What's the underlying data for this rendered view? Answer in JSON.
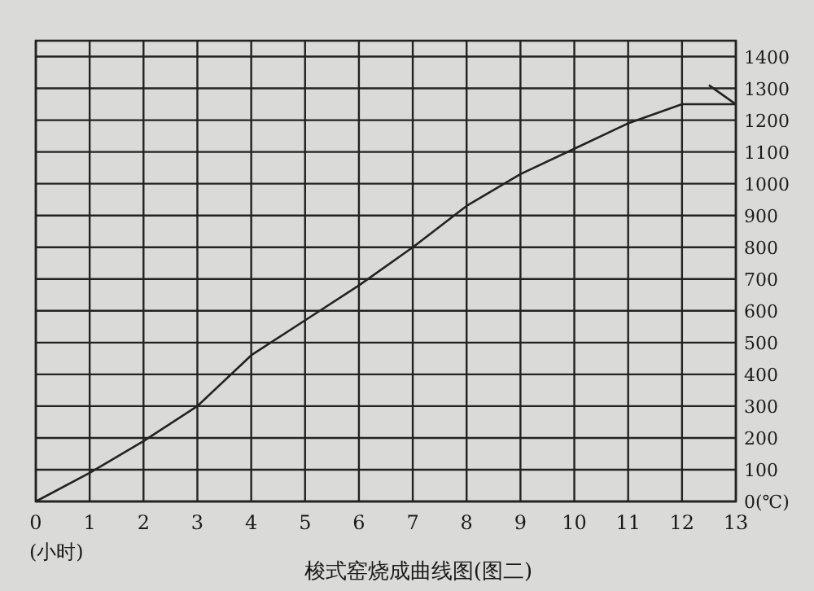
{
  "chart_data": {
    "type": "line",
    "title": "梭式窑烧成曲线图(图二)",
    "xlabel": "(小时)",
    "series": [
      {
        "color": "#222222",
        "x": [
          0,
          1,
          2,
          3,
          4,
          5,
          6,
          7,
          8,
          9,
          10,
          11,
          12,
          13
        ],
        "values": [
          0,
          90,
          190,
          300,
          460,
          570,
          680,
          800,
          930,
          1030,
          1110,
          1190,
          1250,
          1250
        ]
      },
      {
        "color": "#222222",
        "x": [
          12.5,
          13
        ],
        "values": [
          1310,
          1250
        ]
      }
    ],
    "xlim": [
      0,
      13
    ],
    "xticks": [
      0,
      1,
      2,
      3,
      4,
      5,
      6,
      7,
      8,
      9,
      10,
      11,
      12,
      13
    ],
    "ylim": [
      0,
      1450
    ],
    "yticks": [
      {
        "value": 0,
        "label": "0(℃)"
      },
      100,
      200,
      300,
      400,
      500,
      600,
      700,
      800,
      900,
      1000,
      1100,
      1200,
      1300,
      1400
    ],
    "grid": true,
    "marker": "none",
    "line_style": "solid"
  }
}
